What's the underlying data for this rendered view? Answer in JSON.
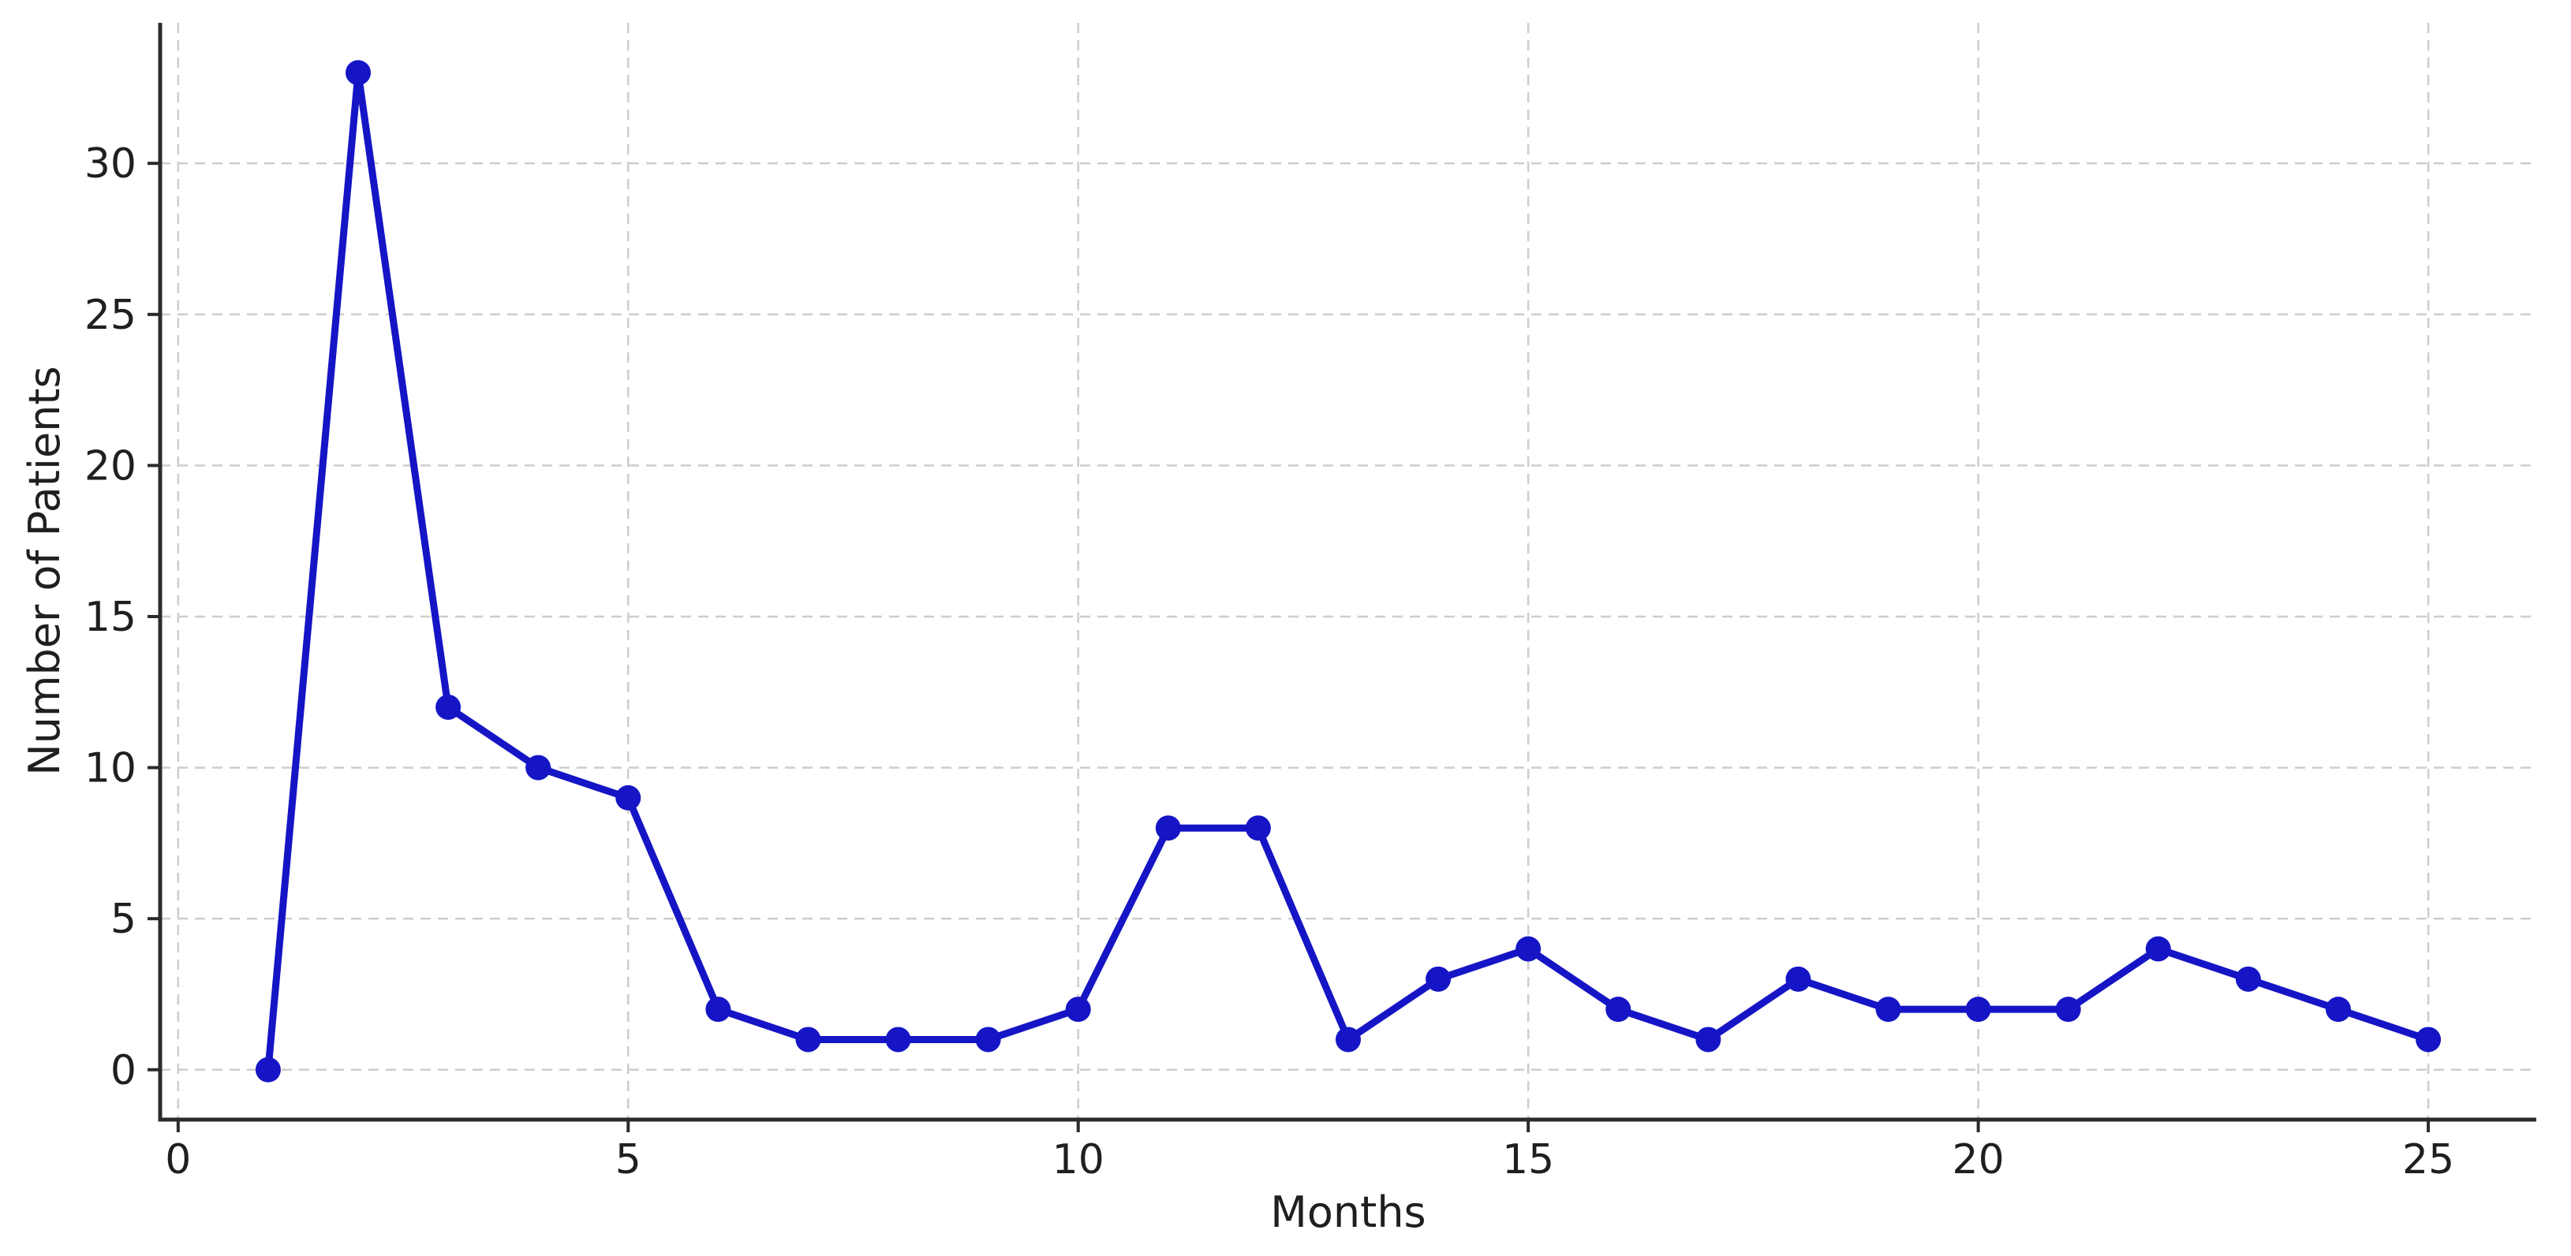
{
  "figure": {
    "background_color": "#ffffff",
    "title": ""
  },
  "chart_data": {
    "type": "line",
    "title": "",
    "xlabel": "Months",
    "ylabel": "Number of Patients",
    "x": [
      1,
      2,
      3,
      4,
      5,
      6,
      7,
      8,
      9,
      10,
      11,
      12,
      13,
      14,
      15,
      16,
      17,
      18,
      19,
      20,
      21,
      22,
      23,
      24,
      25
    ],
    "values": [
      0,
      33,
      12,
      10,
      9,
      2,
      1,
      1,
      1,
      2,
      8,
      8,
      1,
      3,
      4,
      2,
      1,
      3,
      2,
      2,
      2,
      4,
      3,
      2,
      1
    ],
    "x_ticks": [
      0,
      5,
      10,
      15,
      20,
      25
    ],
    "y_ticks": [
      0,
      5,
      10,
      15,
      20,
      25,
      30
    ],
    "xlim": [
      -0.2,
      26.2
    ],
    "ylim": [
      -1.65,
      34.65
    ],
    "grid": true,
    "grid_style": "dashed",
    "legend_position": "none",
    "style": {
      "line_color": "#1515c5",
      "marker": "circle",
      "marker_color": "#1515c5",
      "grid_color": "#cdcdcd",
      "spine_color": "#2b2b2b",
      "tick_color": "#2b2b2b",
      "text_color": "#1f1f1f"
    }
  }
}
